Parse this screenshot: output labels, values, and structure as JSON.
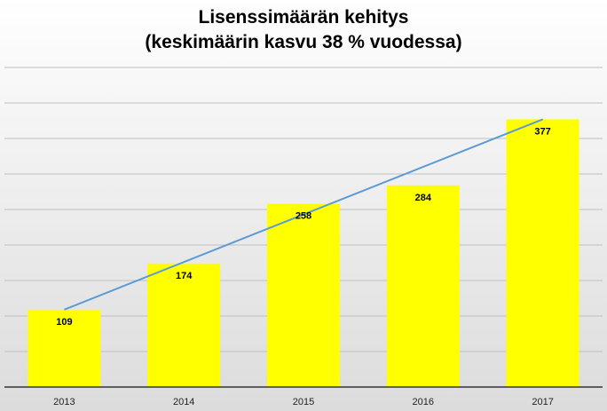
{
  "chart_data": {
    "type": "bar",
    "title": "Lisenssimäärän kehitys",
    "subtitle": "(keskimäärin kasvu 38 % vuodessa)",
    "categories": [
      "2013",
      "2014",
      "2015",
      "2016",
      "2017"
    ],
    "series": [
      {
        "values": [
          109,
          174,
          258,
          284,
          377
        ]
      }
    ],
    "trendline": {
      "type": "linear",
      "from": 109,
      "to": 377,
      "color": "#5b9bd5"
    },
    "data_labels": [
      "109",
      "174",
      "258",
      "284",
      "377"
    ],
    "ylim": [
      0,
      450
    ],
    "grid": true,
    "legend": "none",
    "colors": {
      "bar": "#ffff00",
      "trendline": "#5b9bd5",
      "gridline": "#bfbfbf"
    }
  }
}
